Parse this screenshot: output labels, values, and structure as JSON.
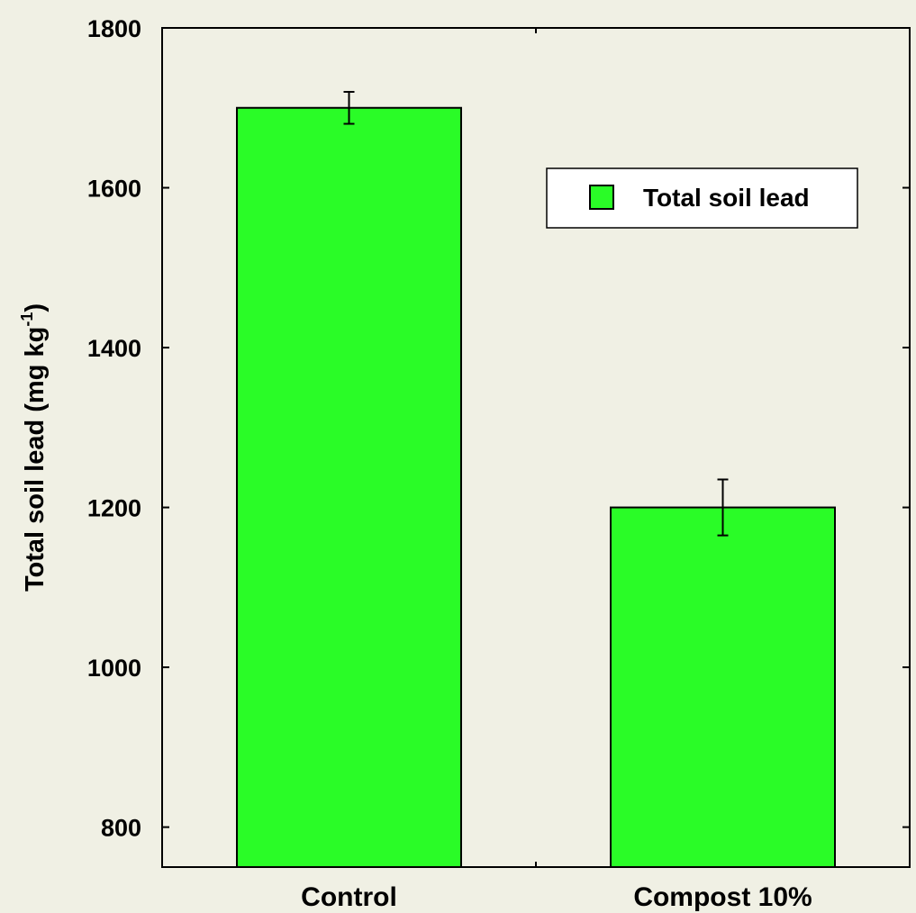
{
  "chart_data": {
    "type": "bar",
    "categories": [
      "Control",
      "Compost 10%"
    ],
    "series": [
      {
        "name": "Total soil lead",
        "values": [
          1700,
          1200
        ],
        "error": [
          20,
          35
        ],
        "color": "#2afc27"
      }
    ],
    "ylabel": "Total soil lead (mg kg-1)",
    "ylabel_main": "Total soil lead (mg kg",
    "ylabel_sup": "-1",
    "ylabel_close": ")",
    "ylim": [
      750,
      1800
    ],
    "yticks": [
      800,
      1000,
      1200,
      1400,
      1600,
      1800
    ],
    "grid": false,
    "legend": {
      "position": "top-right",
      "label": "Total soil lead"
    },
    "colors": {
      "background": "#f0f0e4",
      "bar": "#2afc27",
      "frame": "#000000"
    }
  }
}
